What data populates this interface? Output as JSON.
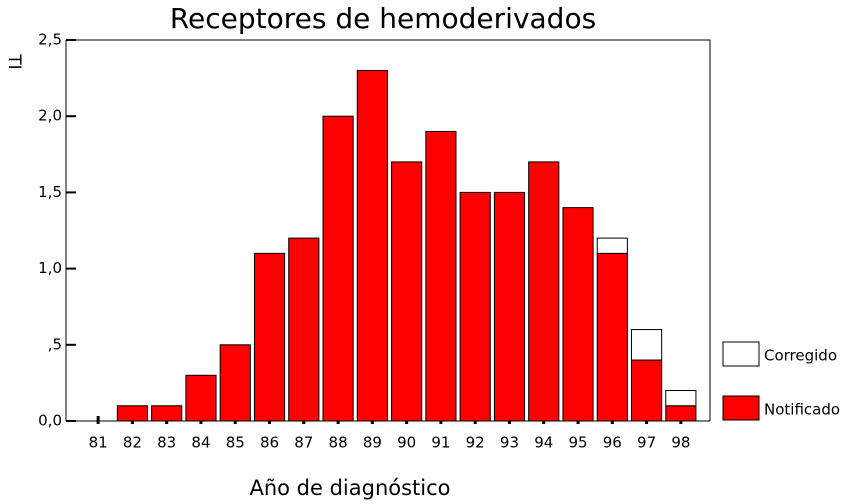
{
  "chart_data": {
    "type": "bar",
    "stacked": true,
    "title": "Receptores de hemoderivados",
    "xlabel": "Año de diagnóstico",
    "ylabel": "TI",
    "categories": [
      "81",
      "82",
      "83",
      "84",
      "85",
      "86",
      "87",
      "88",
      "89",
      "90",
      "91",
      "92",
      "93",
      "94",
      "95",
      "96",
      "97",
      "98"
    ],
    "series": [
      {
        "name": "Notificado",
        "color": "#ff0000",
        "values": [
          0,
          0.1,
          0.1,
          0.3,
          0.5,
          1.1,
          1.2,
          2.0,
          2.3,
          1.7,
          1.9,
          1.5,
          1.5,
          1.7,
          1.4,
          1.1,
          0.4,
          0.1
        ]
      },
      {
        "name": "Corregido",
        "color": "#ffffff",
        "values": [
          0,
          0,
          0,
          0,
          0,
          0,
          0,
          0,
          0,
          0,
          0,
          0,
          0,
          0,
          0,
          0.1,
          0.2,
          0.1
        ]
      }
    ],
    "ylim": [
      0,
      2.5
    ],
    "yticks": [
      {
        "value": 0,
        "label": "0,0"
      },
      {
        "value": 0.5,
        "label": ",5"
      },
      {
        "value": 1,
        "label": "1,0"
      },
      {
        "value": 1.5,
        "label": "1,5"
      },
      {
        "value": 2,
        "label": "2,0"
      },
      {
        "value": 2.5,
        "label": "2,5"
      }
    ],
    "legend": "right"
  }
}
